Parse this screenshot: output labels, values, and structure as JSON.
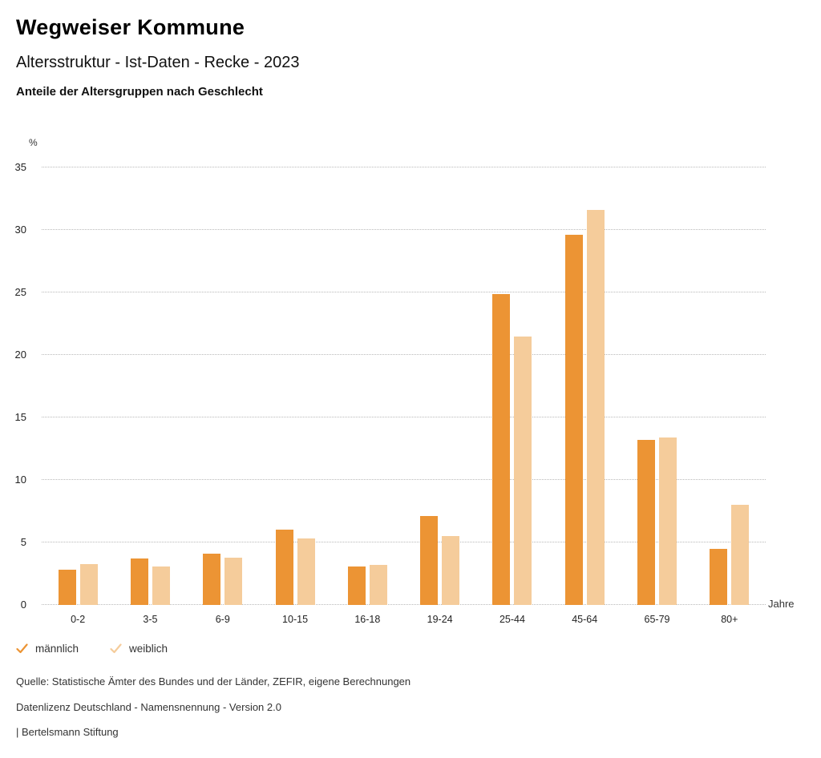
{
  "header": {
    "title": "Wegweiser Kommune",
    "subtitle": "Altersstruktur - Ist-Daten - Recke - 2023",
    "chart_heading": "Anteile der Altersgruppen nach Geschlecht"
  },
  "chart_data": {
    "type": "bar",
    "title": "Anteile der Altersgruppen nach Geschlecht",
    "unit_label": "%",
    "xlabel": "Jahre",
    "ylabel": "%",
    "categories": [
      "0-2",
      "3-5",
      "6-9",
      "10-15",
      "16-18",
      "19-24",
      "25-44",
      "45-64",
      "65-79",
      "80+"
    ],
    "series": [
      {
        "name": "männlich",
        "color": "#EC9434",
        "values": [
          2.8,
          3.7,
          4.1,
          6.0,
          3.1,
          7.1,
          24.9,
          29.6,
          13.2,
          4.5
        ]
      },
      {
        "name": "weiblich",
        "color": "#F5CC9B",
        "values": [
          3.3,
          3.1,
          3.8,
          5.3,
          3.2,
          5.5,
          21.5,
          31.6,
          13.4,
          8.0
        ]
      }
    ],
    "ylim": [
      0,
      35
    ],
    "yticks": [
      0,
      5,
      10,
      15,
      20,
      25,
      30,
      35
    ],
    "grid": "horizontal-dotted",
    "legend_position": "bottom-left"
  },
  "footer": {
    "source": "Quelle: Statistische Ämter des Bundes und der Länder, ZEFIR, eigene Berechnungen",
    "license": "Datenlizenz Deutschland - Namensnennung - Version 2.0",
    "attribution": "| Bertelsmann Stiftung"
  }
}
